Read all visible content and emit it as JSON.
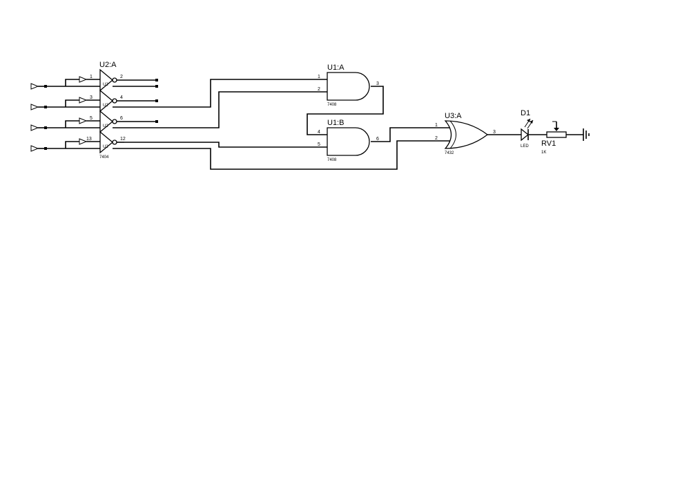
{
  "components": {
    "u2": {
      "ref": "U2:A",
      "part": "7404",
      "pins": [
        "1",
        "2",
        "3",
        "4",
        "5",
        "6",
        "13",
        "12"
      ],
      "overlap_labels": [
        "U2",
        "U2",
        "U2",
        "U2"
      ]
    },
    "u1a": {
      "ref": "U1:A",
      "part": "7408",
      "pins": [
        "1",
        "2",
        "3"
      ]
    },
    "u1b": {
      "ref": "U1:B",
      "part": "7408",
      "pins": [
        "4",
        "5",
        "6"
      ]
    },
    "u3a": {
      "ref": "U3:A",
      "part": "7432",
      "pins": [
        "1",
        "2",
        "3"
      ]
    },
    "d1": {
      "ref": "D1",
      "part": "LED"
    },
    "rv1": {
      "ref": "RV1",
      "value": "1K"
    }
  }
}
